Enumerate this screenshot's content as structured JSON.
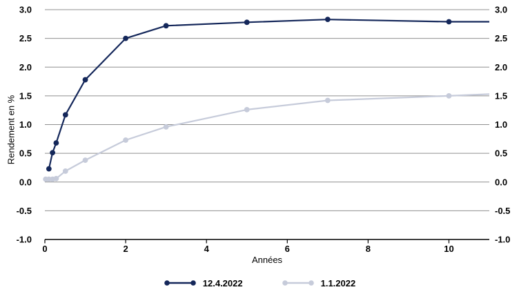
{
  "chart_data": {
    "type": "line",
    "title": "",
    "xlabel": "Années",
    "ylabel": "Rendement en %",
    "xlim": [
      0,
      11
    ],
    "ylim": [
      -1.0,
      3.0
    ],
    "grid": "horizontal",
    "gridline_color": "#8f8f8f",
    "axis_color": "#000000",
    "tick_label_color": "#000000",
    "y_ticks_both_sides": true,
    "legend_position": "bottom-center",
    "x_tick_values": [
      0,
      2,
      4,
      6,
      8,
      10
    ],
    "x_tick_labels": [
      "0",
      "2",
      "4",
      "6",
      "8",
      "10"
    ],
    "y_tick_values": [
      3.0,
      2.5,
      2.0,
      1.5,
      1.0,
      0.5,
      0.0,
      -0.5,
      -1.0
    ],
    "y_tick_labels": [
      "3.0",
      "2.5",
      "2.0",
      "1.5",
      "1.0",
      "0.5",
      "0.0",
      "-0.5",
      "-1.0"
    ],
    "series": [
      {
        "name": "12.4.2022",
        "color": "#14275a",
        "x": [
          0.1,
          0.19,
          0.28,
          0.51,
          1,
          2,
          3,
          5,
          7,
          10
        ],
        "y": [
          0.23,
          0.51,
          0.68,
          1.17,
          1.78,
          2.5,
          2.72,
          2.78,
          2.83,
          2.79
        ],
        "line_end": {
          "x": 11,
          "y": 2.79
        }
      },
      {
        "name": "1.1.2022",
        "color": "#c6cbda",
        "x": [
          0.02,
          0.1,
          0.19,
          0.28,
          0.51,
          1,
          2,
          3,
          5,
          7,
          10
        ],
        "y": [
          0.05,
          0.05,
          0.05,
          0.06,
          0.19,
          0.38,
          0.73,
          0.96,
          1.26,
          1.42,
          1.5
        ],
        "line_end": {
          "x": 11,
          "y": 1.53
        }
      }
    ]
  }
}
